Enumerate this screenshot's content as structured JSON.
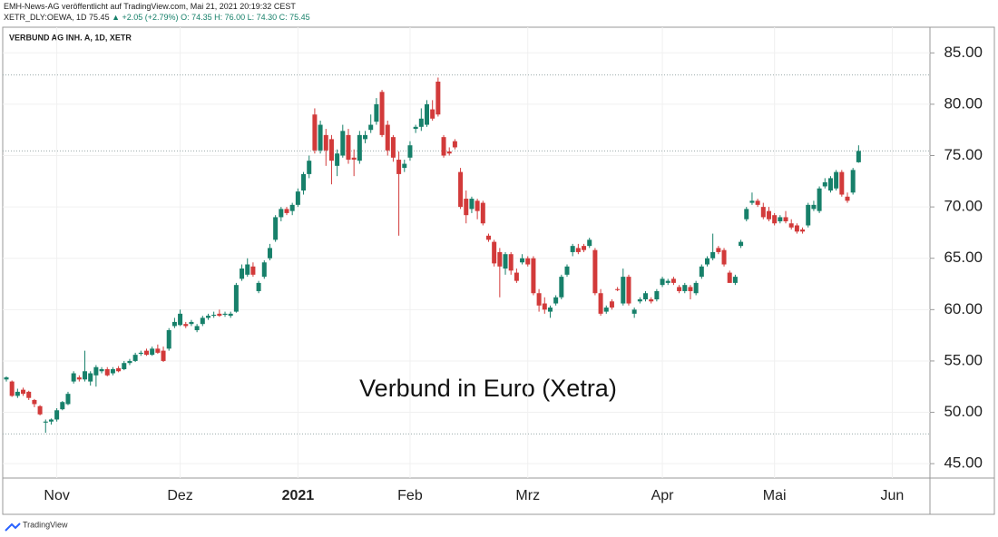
{
  "header": {
    "publisher": "EMH-News-AG veröffentlicht auf TradingView.com, Mai 21, 2021 20:19:32 CEST",
    "symbol": "XETR_DLY:OEWA, 1D",
    "last": "75.45",
    "change": "▲ +2.05 (+2.79%)",
    "ohlc": "O: 74.35 H: 76.00 L: 74.30 C: 75.45"
  },
  "footer": {
    "brand": "TradingView"
  },
  "chart_data": {
    "type": "candlestick",
    "legend": "VERBUND AG INH. A, 1D, XETR",
    "annotation": "Verbund in Euro (Xetra)",
    "up_color": "#17806a",
    "down_color": "#d23a3a",
    "grid": true,
    "ylim": [
      43.6,
      87.5
    ],
    "yticks": [
      {
        "value": 45,
        "label": "45.00"
      },
      {
        "value": 50,
        "label": "50.00"
      },
      {
        "value": 55,
        "label": "55.00"
      },
      {
        "value": 60,
        "label": "60.00"
      },
      {
        "value": 65,
        "label": "65.00"
      },
      {
        "value": 70,
        "label": "70.00"
      },
      {
        "value": 75,
        "label": "75.00"
      },
      {
        "value": 80,
        "label": "80.00"
      },
      {
        "value": 85,
        "label": "85.00"
      }
    ],
    "price_lines": [
      82.85,
      75.45,
      47.9
    ],
    "categories": [
      null,
      null,
      null,
      null,
      null,
      null,
      null,
      null,
      null,
      "Nov",
      null,
      null,
      null,
      null,
      null,
      null,
      null,
      null,
      null,
      null,
      null,
      null,
      null,
      null,
      null,
      null,
      null,
      null,
      null,
      null,
      null,
      "Dez",
      null,
      null,
      null,
      null,
      null,
      null,
      null,
      null,
      null,
      null,
      null,
      null,
      null,
      null,
      null,
      null,
      null,
      null,
      null,
      null,
      "2021",
      null,
      null,
      null,
      null,
      null,
      null,
      null,
      null,
      null,
      null,
      null,
      null,
      null,
      null,
      null,
      null,
      null,
      null,
      null,
      "Feb",
      null,
      null,
      null,
      null,
      null,
      null,
      null,
      null,
      null,
      null,
      null,
      null,
      null,
      null,
      null,
      null,
      null,
      null,
      null,
      null,
      "Mrz",
      null,
      null,
      null,
      null,
      null,
      null,
      null,
      null,
      null,
      null,
      null,
      null,
      null,
      null,
      null,
      null,
      null,
      null,
      null,
      null,
      null,
      null,
      null,
      "Apr",
      null,
      null,
      null,
      null,
      null,
      null,
      null,
      null,
      null,
      null,
      null,
      null,
      null,
      null,
      null,
      null,
      null,
      null,
      null,
      "Mai",
      null,
      null,
      null,
      null,
      null,
      null,
      null,
      null,
      null,
      null,
      null,
      null,
      null,
      null,
      null,
      null,
      null,
      null,
      null,
      null,
      "Jun"
    ],
    "values": [
      [
        53.2,
        53.5,
        53.0,
        53.4
      ],
      [
        53.0,
        53.1,
        51.5,
        51.6
      ],
      [
        51.6,
        52.3,
        51.4,
        52.0
      ],
      [
        52.2,
        52.4,
        51.6,
        51.8
      ],
      [
        52.0,
        52.1,
        51.2,
        51.4
      ],
      [
        51.2,
        51.3,
        50.5,
        50.8
      ],
      [
        50.6,
        50.7,
        49.7,
        49.8
      ],
      [
        49.0,
        49.3,
        48.0,
        49.1
      ],
      [
        49.1,
        49.4,
        48.8,
        49.3
      ],
      [
        49.3,
        50.4,
        49.1,
        50.2
      ],
      [
        50.3,
        51.1,
        50.2,
        51.0
      ],
      [
        50.8,
        52.0,
        50.7,
        51.8
      ],
      [
        53.0,
        54.0,
        52.8,
        53.8
      ],
      [
        53.4,
        53.6,
        53.0,
        53.2
      ],
      [
        53.2,
        56.0,
        53.0,
        54.0
      ],
      [
        53.0,
        54.0,
        52.6,
        53.8
      ],
      [
        53.6,
        54.6,
        52.5,
        54.4
      ],
      [
        54.0,
        54.4,
        53.8,
        54.2
      ],
      [
        54.2,
        54.4,
        53.5,
        53.6
      ],
      [
        53.8,
        54.4,
        53.6,
        54.2
      ],
      [
        54.3,
        54.5,
        53.9,
        54.0
      ],
      [
        54.2,
        55.0,
        54.1,
        54.8
      ],
      [
        54.8,
        55.2,
        54.6,
        55.0
      ],
      [
        55.0,
        55.8,
        54.9,
        55.6
      ],
      [
        55.7,
        56.0,
        55.5,
        55.8
      ],
      [
        56.0,
        56.2,
        55.5,
        55.6
      ],
      [
        55.6,
        56.4,
        55.5,
        56.2
      ],
      [
        56.2,
        56.6,
        55.7,
        55.8
      ],
      [
        56.0,
        56.4,
        54.9,
        55.0
      ],
      [
        56.2,
        58.2,
        56.0,
        58.0
      ],
      [
        58.4,
        59.2,
        58.2,
        58.8
      ],
      [
        58.5,
        60.0,
        58.4,
        59.6
      ],
      [
        58.6,
        58.8,
        58.2,
        58.4
      ],
      [
        58.6,
        59.0,
        58.4,
        58.8
      ],
      [
        58.0,
        58.6,
        57.8,
        58.4
      ],
      [
        58.6,
        59.4,
        58.4,
        59.2
      ],
      [
        59.2,
        59.6,
        59.0,
        59.4
      ],
      [
        59.4,
        59.8,
        59.2,
        59.5
      ],
      [
        59.6,
        60.0,
        59.3,
        59.4
      ],
      [
        59.5,
        59.8,
        59.3,
        59.6
      ],
      [
        59.4,
        59.8,
        59.2,
        59.6
      ],
      [
        59.8,
        62.6,
        59.7,
        62.4
      ],
      [
        63.0,
        64.4,
        62.8,
        64.0
      ],
      [
        63.4,
        65.0,
        63.2,
        64.4
      ],
      [
        64.2,
        64.6,
        63.2,
        63.4
      ],
      [
        61.8,
        62.8,
        61.6,
        62.6
      ],
      [
        63.2,
        64.8,
        63.0,
        64.6
      ],
      [
        65.0,
        66.4,
        64.8,
        66.0
      ],
      [
        66.8,
        69.2,
        66.6,
        69.0
      ],
      [
        69.0,
        70.0,
        68.6,
        69.8
      ],
      [
        69.8,
        70.0,
        69.2,
        69.4
      ],
      [
        69.6,
        70.4,
        69.2,
        70.2
      ],
      [
        70.2,
        71.8,
        70.0,
        71.5
      ],
      [
        71.6,
        73.4,
        71.2,
        73.2
      ],
      [
        73.2,
        75.0,
        72.8,
        74.5
      ],
      [
        79.0,
        79.6,
        75.2,
        75.5
      ],
      [
        75.5,
        78.4,
        75.2,
        78.0
      ],
      [
        77.0,
        77.6,
        74.0,
        75.5
      ],
      [
        76.6,
        77.0,
        72.2,
        74.5
      ],
      [
        74.0,
        75.6,
        73.0,
        75.2
      ],
      [
        75.0,
        78.0,
        74.8,
        77.4
      ],
      [
        77.0,
        77.6,
        74.2,
        74.6
      ],
      [
        74.8,
        75.6,
        73.0,
        74.6
      ],
      [
        74.5,
        77.4,
        74.2,
        77.0
      ],
      [
        76.6,
        77.4,
        76.2,
        77.0
      ],
      [
        77.5,
        79.0,
        77.2,
        78.0
      ],
      [
        78.3,
        80.6,
        78.0,
        80.0
      ],
      [
        81.2,
        81.4,
        76.8,
        77.0
      ],
      [
        78.0,
        78.4,
        75.0,
        75.5
      ],
      [
        76.8,
        77.0,
        74.4,
        74.8
      ],
      [
        74.6,
        75.4,
        67.2,
        73.2
      ],
      [
        73.8,
        74.6,
        73.4,
        74.2
      ],
      [
        74.8,
        76.4,
        74.5,
        76.0
      ],
      [
        77.6,
        78.0,
        77.2,
        77.8
      ],
      [
        77.8,
        79.6,
        77.4,
        78.6
      ],
      [
        78.0,
        80.4,
        77.8,
        80.0
      ],
      [
        79.5,
        80.4,
        78.4,
        78.6
      ],
      [
        82.2,
        82.6,
        78.8,
        79.0
      ],
      [
        76.8,
        77.0,
        74.8,
        75.0
      ],
      [
        75.4,
        75.8,
        75.0,
        75.2
      ],
      [
        76.4,
        76.6,
        75.6,
        75.8
      ],
      [
        73.4,
        73.8,
        69.8,
        70.0
      ],
      [
        70.8,
        71.6,
        68.4,
        69.2
      ],
      [
        69.8,
        71.0,
        69.4,
        70.8
      ],
      [
        70.6,
        70.8,
        68.8,
        69.6
      ],
      [
        70.4,
        70.6,
        68.2,
        68.4
      ],
      [
        67.2,
        67.4,
        66.6,
        66.8
      ],
      [
        66.6,
        66.8,
        64.2,
        64.5
      ],
      [
        65.6,
        66.0,
        61.2,
        64.2
      ],
      [
        64.0,
        65.6,
        63.4,
        65.4
      ],
      [
        65.4,
        65.6,
        63.4,
        63.8
      ],
      [
        63.6,
        64.0,
        62.6,
        62.8
      ],
      [
        64.6,
        65.4,
        64.4,
        65.0
      ],
      [
        65.0,
        65.2,
        64.2,
        64.4
      ],
      [
        65.0,
        65.2,
        61.4,
        61.6
      ],
      [
        61.6,
        62.0,
        59.8,
        60.4
      ],
      [
        60.6,
        61.2,
        59.6,
        60.0
      ],
      [
        59.8,
        60.4,
        59.2,
        60.2
      ],
      [
        60.6,
        61.4,
        60.4,
        61.2
      ],
      [
        61.2,
        63.4,
        61.0,
        63.2
      ],
      [
        63.4,
        64.4,
        63.2,
        64.2
      ],
      [
        65.6,
        66.4,
        65.2,
        66.2
      ],
      [
        66.0,
        66.4,
        65.4,
        65.6
      ],
      [
        66.2,
        66.4,
        65.6,
        65.8
      ],
      [
        66.2,
        67.0,
        66.0,
        66.8
      ],
      [
        65.8,
        66.0,
        61.4,
        61.6
      ],
      [
        61.6,
        62.0,
        59.4,
        59.6
      ],
      [
        59.8,
        60.4,
        59.6,
        60.2
      ],
      [
        60.8,
        61.0,
        60.0,
        60.2
      ],
      [
        62.0,
        62.2,
        61.8,
        61.9
      ],
      [
        60.6,
        64.0,
        60.4,
        63.2
      ],
      [
        63.2,
        63.4,
        60.4,
        60.6
      ],
      [
        59.6,
        60.2,
        59.2,
        60.0
      ],
      [
        60.8,
        61.2,
        60.6,
        61.0
      ],
      [
        61.0,
        61.8,
        60.8,
        61.6
      ],
      [
        61.0,
        61.2,
        60.6,
        60.8
      ],
      [
        61.0,
        62.0,
        60.8,
        61.8
      ],
      [
        62.4,
        63.2,
        62.2,
        63.0
      ],
      [
        62.6,
        63.0,
        62.4,
        62.8
      ],
      [
        63.0,
        63.2,
        62.4,
        62.6
      ],
      [
        62.2,
        62.4,
        61.6,
        61.8
      ],
      [
        61.8,
        62.6,
        61.6,
        62.4
      ],
      [
        62.2,
        62.4,
        61.0,
        61.8
      ],
      [
        61.6,
        62.8,
        61.4,
        62.6
      ],
      [
        63.2,
        64.4,
        63.0,
        64.2
      ],
      [
        64.4,
        65.2,
        64.2,
        65.0
      ],
      [
        65.0,
        67.4,
        64.8,
        65.6
      ],
      [
        66.0,
        66.2,
        65.4,
        65.6
      ],
      [
        65.8,
        66.0,
        64.2,
        64.4
      ],
      [
        63.6,
        63.8,
        62.6,
        62.6
      ],
      [
        62.6,
        63.4,
        62.4,
        63.2
      ],
      [
        66.2,
        66.8,
        66.0,
        66.6
      ],
      [
        68.8,
        70.0,
        68.6,
        69.8
      ],
      [
        70.4,
        71.4,
        70.2,
        70.6
      ],
      [
        70.6,
        70.8,
        70.0,
        70.2
      ],
      [
        70.0,
        70.4,
        68.8,
        69.0
      ],
      [
        69.6,
        70.0,
        68.6,
        68.8
      ],
      [
        69.2,
        69.4,
        68.2,
        68.4
      ],
      [
        68.6,
        69.2,
        68.4,
        69.0
      ],
      [
        69.0,
        69.6,
        68.4,
        68.6
      ],
      [
        68.4,
        68.8,
        67.8,
        68.0
      ],
      [
        68.2,
        68.4,
        67.4,
        67.6
      ],
      [
        67.8,
        68.0,
        67.4,
        67.6
      ],
      [
        68.2,
        70.4,
        68.0,
        70.2
      ],
      [
        69.8,
        70.6,
        69.6,
        70.2
      ],
      [
        69.6,
        72.0,
        69.4,
        71.8
      ],
      [
        72.0,
        72.8,
        71.8,
        72.4
      ],
      [
        71.6,
        73.0,
        71.4,
        72.8
      ],
      [
        71.8,
        73.6,
        71.6,
        73.4
      ],
      [
        73.4,
        73.6,
        71.0,
        71.2
      ],
      [
        71.0,
        71.4,
        70.4,
        70.6
      ],
      [
        71.4,
        73.8,
        71.2,
        73.6
      ],
      [
        74.35,
        76.0,
        74.3,
        75.45
      ],
      null,
      null,
      null,
      null,
      null,
      null
    ]
  }
}
